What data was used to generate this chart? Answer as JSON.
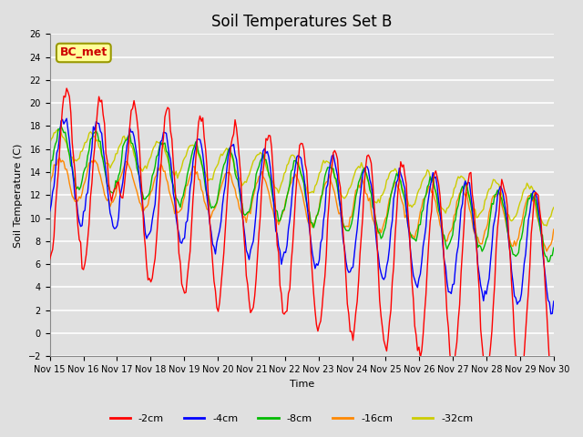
{
  "title": "Soil Temperatures Set B",
  "xlabel": "Time",
  "ylabel": "Soil Temperature (C)",
  "ylim": [
    -2,
    26
  ],
  "yticks": [
    -2,
    0,
    2,
    4,
    6,
    8,
    10,
    12,
    14,
    16,
    18,
    20,
    22,
    24,
    26
  ],
  "series_colors": {
    "-2cm": "#ff0000",
    "-4cm": "#0000ff",
    "-8cm": "#00bb00",
    "-16cm": "#ff8800",
    "-32cm": "#cccc00"
  },
  "annotation_text": "BC_met",
  "annotation_color": "#cc0000",
  "annotation_bg": "#ffff99",
  "annotation_edge": "#999900",
  "background_color": "#e0e0e0",
  "plot_bg_color": "#e0e0e0",
  "grid_color": "#ffffff",
  "title_fontsize": 12,
  "label_fontsize": 8,
  "tick_fontsize": 7,
  "legend_fontsize": 8,
  "x_tick_days": [
    15,
    16,
    17,
    18,
    19,
    20,
    21,
    22,
    23,
    24,
    25,
    26,
    27,
    28,
    29,
    30
  ]
}
